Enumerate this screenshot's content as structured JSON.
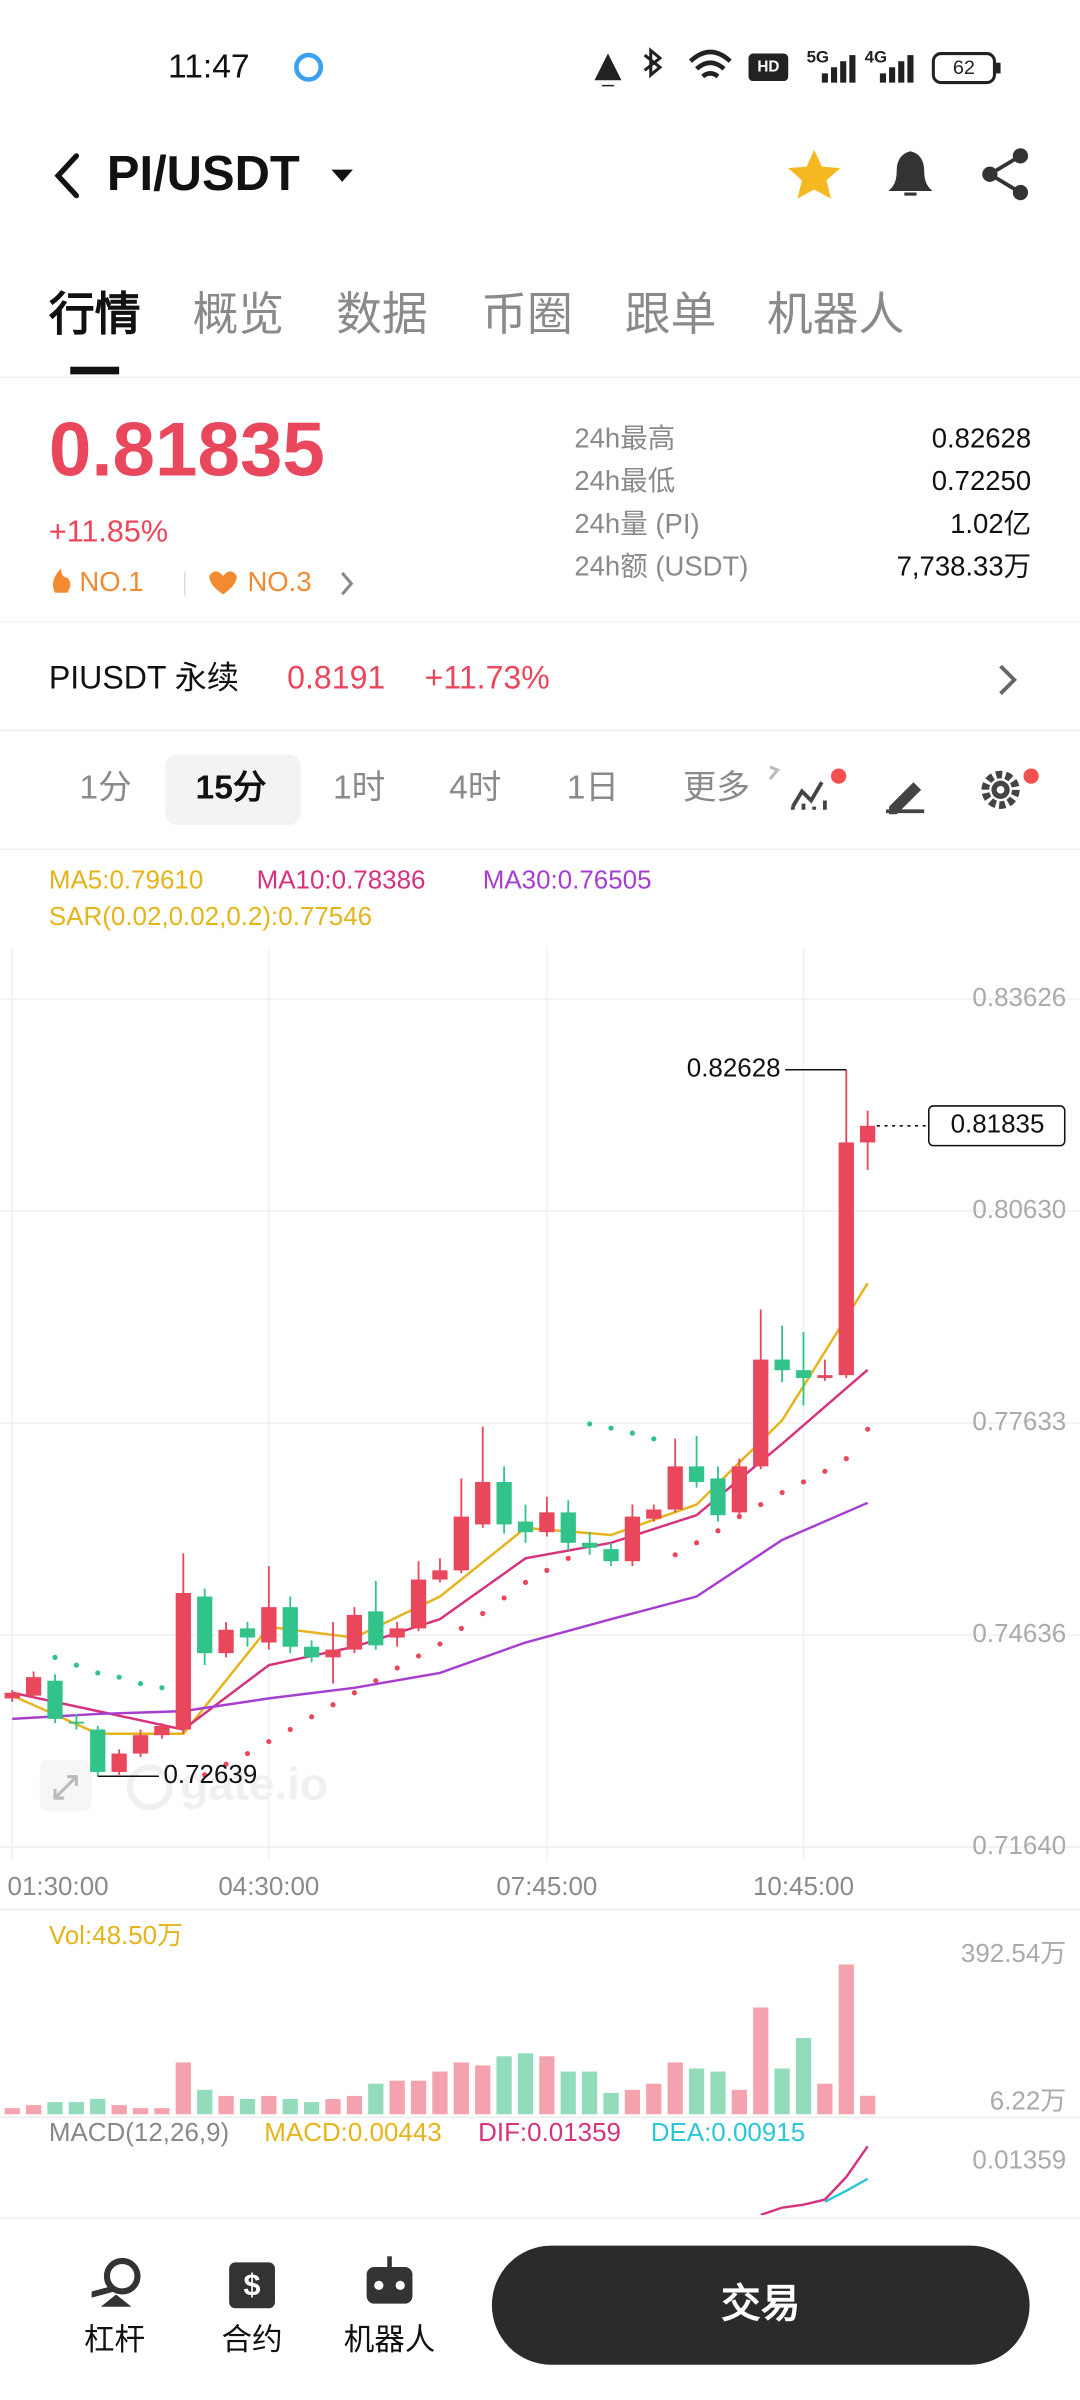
{
  "status_bar": {
    "time": "11:47",
    "signal_labels": [
      "HD",
      "5G",
      "4G"
    ],
    "battery": "62"
  },
  "header": {
    "pair": "PI/USDT"
  },
  "tabs": [
    "行情",
    "概览",
    "数据",
    "币圈",
    "跟单",
    "机器人"
  ],
  "ticker": {
    "price": "0.81835",
    "change": "+11.85%",
    "ranks": [
      "NO.1",
      "NO.3"
    ],
    "stats": [
      {
        "label": "24h最高",
        "value": "0.82628"
      },
      {
        "label": "24h最低",
        "value": "0.72250"
      },
      {
        "label": "24h量 (PI)",
        "value": "1.02亿"
      },
      {
        "label": "24h额 (USDT)",
        "value": "7,738.33万"
      }
    ]
  },
  "perpetual": {
    "name": "PIUSDT 永续",
    "price": "0.8191",
    "change": "+11.73%"
  },
  "intervals": [
    "1分",
    "15分",
    "1时",
    "4时",
    "1日",
    "更多"
  ],
  "watermark": "gate.io",
  "chart_data": {
    "type": "candlestick",
    "categories": [
      "01:30:00",
      null,
      null,
      null,
      null,
      null,
      null,
      null,
      null,
      null,
      null,
      null,
      "04:30:00",
      null,
      null,
      null,
      null,
      null,
      null,
      null,
      null,
      null,
      null,
      null,
      null,
      "07:45:00",
      null,
      null,
      null,
      null,
      null,
      null,
      null,
      null,
      null,
      null,
      null,
      "10:45:00",
      null,
      null,
      null
    ],
    "open": [
      0.7374,
      0.7378,
      0.7399,
      0.7341,
      0.733,
      0.727,
      0.7296,
      0.7322,
      0.733,
      0.7518,
      0.7438,
      0.7473,
      0.7453,
      0.7503,
      0.7447,
      0.7432,
      0.7443,
      0.7497,
      0.746,
      0.7473,
      0.7542,
      0.7555,
      0.762,
      0.768,
      0.7624,
      0.7609,
      0.7637,
      0.7594,
      0.7585,
      0.7568,
      0.7628,
      0.7641,
      0.7702,
      0.7685,
      0.7637,
      0.7702,
      0.7853,
      0.7838,
      0.7827,
      0.7831,
      0.816
    ],
    "high": [
      0.7386,
      0.7412,
      0.7408,
      0.7352,
      0.7335,
      0.7302,
      0.733,
      0.7339,
      0.7579,
      0.7529,
      0.7482,
      0.7482,
      0.7561,
      0.7518,
      0.7456,
      0.7482,
      0.7503,
      0.754,
      0.7482,
      0.7568,
      0.7572,
      0.7685,
      0.7758,
      0.7702,
      0.7648,
      0.7659,
      0.7654,
      0.7609,
      0.7594,
      0.7648,
      0.7648,
      0.7741,
      0.7745,
      0.7702,
      0.7713,
      0.7924,
      0.7901,
      0.7892,
      0.7853,
      0.82628,
      0.8205
    ],
    "low": [
      0.7369,
      0.7374,
      0.7339,
      0.733,
      0.72639,
      0.7266,
      0.7291,
      0.7317,
      0.7324,
      0.7421,
      0.7432,
      0.7447,
      0.7443,
      0.7438,
      0.7425,
      0.7395,
      0.7438,
      0.7443,
      0.7447,
      0.7469,
      0.7538,
      0.7551,
      0.7615,
      0.7607,
      0.7594,
      0.7603,
      0.7583,
      0.7577,
      0.7561,
      0.7561,
      0.7624,
      0.7637,
      0.7672,
      0.7624,
      0.7631,
      0.7698,
      0.7821,
      0.7788,
      0.7823,
      0.7827,
      0.8121
    ],
    "close": [
      0.7382,
      0.7404,
      0.7345,
      0.7339,
      0.727,
      0.7296,
      0.7322,
      0.7335,
      0.7523,
      0.7438,
      0.7471,
      0.746,
      0.7503,
      0.7447,
      0.7432,
      0.7443,
      0.7492,
      0.7449,
      0.7473,
      0.7542,
      0.7555,
      0.7631,
      0.768,
      0.762,
      0.7609,
      0.7637,
      0.7594,
      0.7587,
      0.7568,
      0.7631,
      0.7641,
      0.7702,
      0.768,
      0.7633,
      0.7702,
      0.7853,
      0.7838,
      0.7827,
      0.7831,
      0.816,
      0.81835
    ],
    "ylim": [
      0.7164,
      0.83626
    ],
    "yticks": [
      0.83626,
      {
        "value": 0.8063,
        "label": "0.80630"
      },
      0.77633,
      0.74636,
      {
        "value": 0.7164,
        "label": "0.71640"
      }
    ],
    "grid": true,
    "up_color": "#e9475c",
    "down_color": "#32c38a",
    "ma": [
      {
        "label": "MA5:0.79610",
        "color": "#e5b31a",
        "x": [
          0,
          4,
          8,
          12,
          16,
          20,
          24,
          28,
          32,
          36,
          40
        ],
        "values": [
          0.7378,
          0.7324,
          0.7324,
          0.7475,
          0.746,
          0.7518,
          0.7615,
          0.7605,
          0.7648,
          0.7767,
          0.7961
        ]
      },
      {
        "label": "MA10:0.78386",
        "color": "#d6337f",
        "x": [
          0,
          4,
          8,
          12,
          16,
          20,
          24,
          28,
          32,
          36,
          40
        ],
        "values": [
          0.7382,
          0.7356,
          0.733,
          0.7421,
          0.7447,
          0.7486,
          0.7572,
          0.7594,
          0.7633,
          0.7734,
          0.78386
        ]
      },
      {
        "label": "MA30:0.76505",
        "color": "#a63fd0",
        "x": [
          0,
          4,
          8,
          12,
          16,
          20,
          24,
          28,
          32,
          36,
          40
        ],
        "values": [
          0.7345,
          0.7352,
          0.7356,
          0.7374,
          0.7389,
          0.741,
          0.7453,
          0.7486,
          0.7518,
          0.7598,
          0.76505
        ]
      }
    ],
    "sar": {
      "label": "SAR(0.02,0.02,0.2):0.77546",
      "color": "#e9475c",
      "alt_color": "#32c38a",
      "values": [
        null,
        null,
        0.7432,
        0.7421,
        0.741,
        0.7404,
        0.7395,
        0.7389,
        null,
        0.7266,
        0.7281,
        0.7296,
        0.7313,
        0.733,
        0.7348,
        0.7365,
        0.7382,
        0.7399,
        0.7417,
        0.7434,
        0.7451,
        0.7473,
        0.7494,
        0.7516,
        0.7538,
        0.7555,
        0.7572,
        0.7762,
        0.7756,
        0.7749,
        0.7741,
        0.7577,
        0.7594,
        0.7611,
        0.7631,
        0.7648,
        0.7665,
        0.768,
        0.7695,
        0.7713,
        0.77546
      ]
    },
    "volume": {
      "label": "Vol:48.50万",
      "values": [
        16,
        24,
        32,
        32,
        40,
        24,
        16,
        16,
        136,
        64,
        48,
        40,
        48,
        40,
        32,
        40,
        48,
        80,
        88,
        88,
        112,
        136,
        128,
        152,
        160,
        152,
        112,
        112,
        56,
        64,
        80,
        136,
        120,
        112,
        64,
        280,
        120,
        200,
        80,
        392.54,
        48.5
      ],
      "ylim": [
        0,
        392.54
      ],
      "yticks": [
        {
          "value": 392.54,
          "label": "392.54万"
        },
        {
          "value": 6.22,
          "label": "6.22万"
        }
      ],
      "up_color": "#f4a3ae",
      "down_color": "#92dcbc"
    },
    "macd": {
      "labels": [
        "MACD(12,26,9)",
        "MACD:0.00443",
        "DIF:0.01359",
        "DEA:0.00915"
      ],
      "label_colors": [
        "#888888",
        "#e5b31a",
        "#d6337f",
        "#2cc6d6"
      ],
      "ylim": [
        0,
        0.01359
      ],
      "yticks": [
        0.01359
      ],
      "series": [
        {
          "color": "#d6337f",
          "x": [
            35,
            36,
            37,
            38,
            39,
            40
          ],
          "values": [
            0.0042,
            0.0052,
            0.0056,
            0.0063,
            0.0094,
            0.01359
          ]
        },
        {
          "color": "#2cc6d6",
          "x": [
            38,
            39,
            40
          ],
          "values": [
            0.006,
            0.0075,
            0.00915
          ]
        }
      ]
    }
  },
  "bottom_bar": {
    "items": [
      "杠杆",
      "合约",
      "机器人"
    ],
    "button": "交易"
  }
}
